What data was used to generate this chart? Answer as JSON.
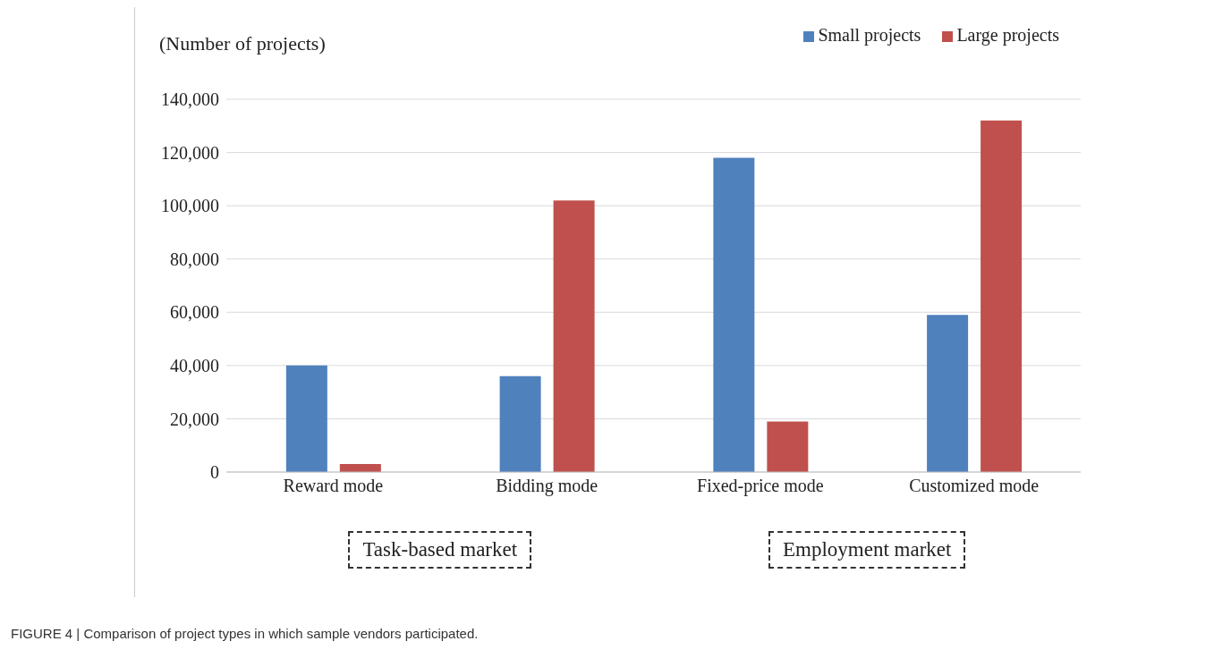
{
  "chart_data": {
    "type": "bar",
    "ylabel": "(Number of projects)",
    "categories": [
      "Reward mode",
      "Bidding mode",
      "Fixed-price mode",
      "Customized mode"
    ],
    "series": [
      {
        "name": "Small projects",
        "color": "#4f81bd",
        "values": [
          40000,
          36000,
          118000,
          59000
        ]
      },
      {
        "name": "Large projects",
        "color": "#c0504d",
        "values": [
          3000,
          102000,
          19000,
          132000
        ]
      }
    ],
    "ylim": [
      0,
      140000
    ],
    "yticks": [
      0,
      {
        "value": 20000,
        "label": "20,000"
      },
      {
        "value": 40000,
        "label": "40,000"
      },
      {
        "value": 60000,
        "label": "60,000"
      },
      {
        "value": 80000,
        "label": "80,000"
      },
      {
        "value": 100000,
        "label": "100,000"
      },
      {
        "value": 120000,
        "label": "120,000"
      },
      {
        "value": 140000,
        "label": "140,000"
      }
    ],
    "grid": "y",
    "legend": "top right",
    "annotations": [
      "Task-based market",
      "Employment market",
      "FIGURE 4 | Comparison of project types in which sample vendors participated."
    ]
  }
}
